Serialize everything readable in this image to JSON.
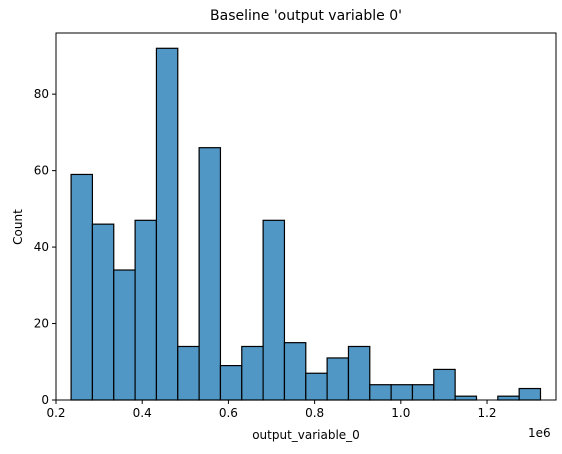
{
  "chart_data": {
    "type": "bar",
    "title": "Baseline 'output variable 0'",
    "xlabel": "output_variable_0",
    "ylabel": "Count",
    "x_offset_label": "1e6",
    "bar_color": "#5197c6",
    "edge_color": "#000000",
    "xlim": [
      0.2,
      1.36
    ],
    "ylim": [
      0,
      96
    ],
    "xticks": [
      0.2,
      0.4,
      0.6,
      0.8,
      1.0,
      1.2
    ],
    "xtick_labels": [
      "0.2",
      "0.4",
      "0.6",
      "0.8",
      "1.0",
      "1.2"
    ],
    "yticks": [
      0,
      20,
      40,
      60,
      80
    ],
    "ytick_labels": [
      "0",
      "20",
      "40",
      "60",
      "80"
    ],
    "bin_start": 0.235,
    "bin_width": 0.0495,
    "values": [
      59,
      46,
      34,
      47,
      92,
      14,
      66,
      9,
      14,
      47,
      15,
      7,
      11,
      14,
      4,
      4,
      4,
      8,
      1,
      0,
      1,
      3
    ],
    "grid": false,
    "legend": "none"
  }
}
